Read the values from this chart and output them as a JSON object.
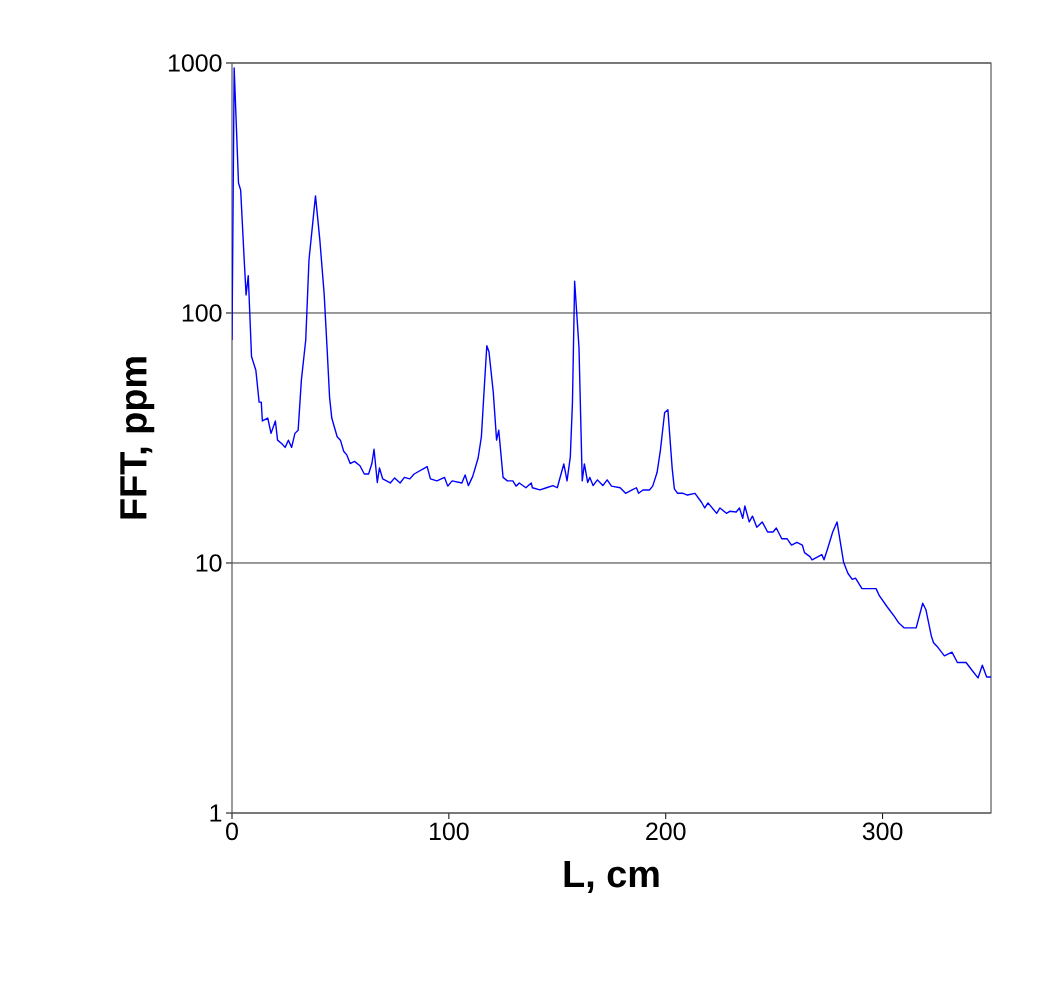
{
  "chart_data": {
    "type": "line",
    "xlabel": "L, cm",
    "ylabel": "FFT, ppm",
    "color": "#0000ff",
    "log": "y",
    "grid": "y",
    "xlim": [
      0,
      350
    ],
    "ylim": [
      1,
      1000
    ],
    "xticks": [
      0,
      100,
      200,
      300
    ],
    "yticks": [
      1,
      10,
      100,
      1000
    ],
    "x": [
      0,
      1,
      3,
      4,
      5.5,
      6.5,
      7.5,
      9,
      11,
      12.5,
      13.5,
      14,
      16.5,
      18,
      20,
      21,
      23,
      24.5,
      26,
      27.5,
      29,
      30.5,
      32,
      34,
      35.5,
      38.5,
      40.5,
      42.5,
      44,
      45,
      46,
      48.5,
      50,
      51.5,
      53,
      54.5,
      56.5,
      59,
      61,
      63,
      64.5,
      65.5,
      67,
      68,
      69.5,
      73,
      75,
      77.5,
      79.5,
      82,
      84,
      90,
      91.5,
      94.5,
      98,
      99.5,
      101.5,
      106,
      107.5,
      109,
      111,
      113.5,
      115,
      116,
      117.5,
      118.5,
      120.5,
      122,
      123,
      125,
      127,
      129.5,
      131,
      132.5,
      135.5,
      138,
      138.5,
      142,
      145,
      148,
      150,
      153,
      154.5,
      156,
      157,
      158,
      160,
      161.5,
      162.5,
      164,
      165,
      166.5,
      168.5,
      171,
      173,
      175,
      179,
      181.5,
      184.5,
      186.5,
      187.5,
      189.5,
      192.5,
      194,
      196,
      197.5,
      199.5,
      201,
      203,
      204,
      205.5,
      208,
      210,
      213.5,
      216.5,
      218,
      219.5,
      223.5,
      225,
      228,
      229.5,
      232.5,
      234,
      235.5,
      236.5,
      238.5,
      240,
      242,
      244.5,
      247,
      249.5,
      251,
      253.5,
      256,
      258,
      260.5,
      263,
      264,
      266.5,
      267.5,
      272,
      273,
      274.5,
      277,
      279,
      282,
      284,
      286,
      287.5,
      290.5,
      297,
      298.5,
      302,
      305.5,
      307.5,
      310,
      315.5,
      318.5,
      320,
      322.5,
      323.5,
      325.5,
      328.5,
      332,
      334.5,
      337,
      338.5,
      341.5,
      344,
      346,
      348,
      350
    ],
    "values": [
      78,
      955,
      331,
      310,
      171,
      118,
      141,
      67,
      59,
      44,
      44,
      37,
      38,
      33,
      37,
      31,
      30,
      29,
      31,
      29,
      33,
      34,
      54,
      78,
      163,
      294,
      196,
      119,
      68,
      46,
      38,
      32,
      31,
      28,
      27,
      25,
      25.5,
      24.5,
      22.7,
      22.7,
      25,
      28.5,
      21,
      24,
      21.7,
      20.9,
      21.9,
      20.9,
      22,
      21.7,
      22.7,
      24.3,
      21.7,
      21.3,
      22,
      20.3,
      21.3,
      20.9,
      22.5,
      20.4,
      22.2,
      26.3,
      32,
      45,
      74,
      70,
      48,
      31,
      34,
      22,
      21.3,
      21.3,
      20.3,
      20.9,
      20,
      20.9,
      20,
      19.6,
      20,
      20.4,
      20,
      24.9,
      21.3,
      26.5,
      44,
      134,
      73,
      21.3,
      24.9,
      21,
      22,
      20.4,
      21.5,
      20.4,
      21.5,
      20.3,
      20,
      19,
      19.6,
      20,
      19,
      19.6,
      19.6,
      20.3,
      23,
      28,
      40,
      41,
      23.8,
      19.8,
      19,
      19,
      18.7,
      19,
      17.5,
      16.6,
      17.4,
      15.8,
      16.6,
      15.8,
      16.1,
      16,
      16.6,
      15.1,
      16.9,
      14.6,
      15.4,
      13.9,
      14.6,
      13.3,
      13.3,
      13.8,
      12.5,
      12.5,
      11.8,
      12.1,
      11.8,
      11,
      10.6,
      10.3,
      10.8,
      10.3,
      11.3,
      13.3,
      14.6,
      10.1,
      9.1,
      8.6,
      8.7,
      7.9,
      7.9,
      7.4,
      6.7,
      6.1,
      5.75,
      5.5,
      5.5,
      6.9,
      6.5,
      5.1,
      4.8,
      4.6,
      4.25,
      4.4,
      4,
      4,
      4,
      3.7,
      3.47,
      3.9,
      3.5,
      3.5
    ]
  }
}
